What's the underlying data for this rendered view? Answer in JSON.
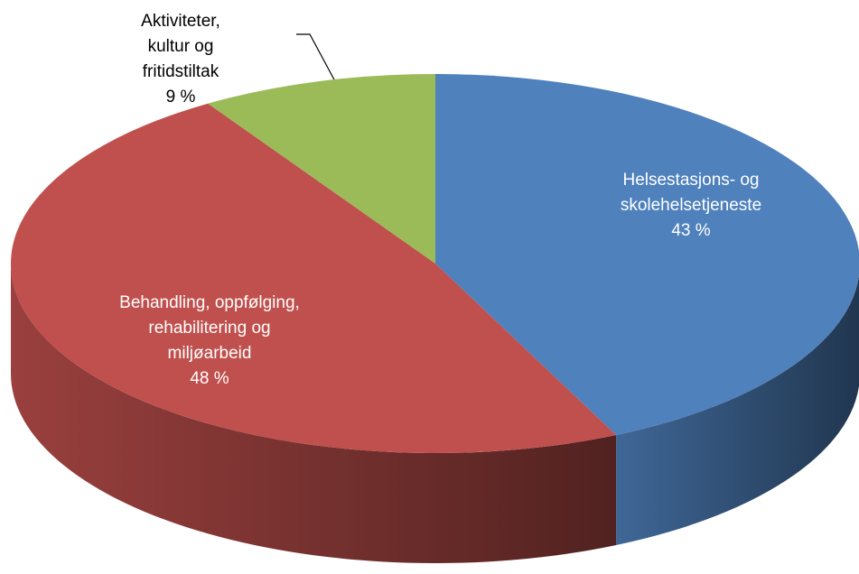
{
  "chart_data": {
    "type": "pie3d",
    "categories": [
      "Helsestasjons- og skolehelsetjeneste",
      "Behandling, oppfølging, rehabilitering og miljøarbeid",
      "Aktiviteter, kultur og fritidstiltak"
    ],
    "values": [
      43,
      48,
      9
    ],
    "value_labels": [
      "43 %",
      "48 %",
      "9 %"
    ],
    "colors": [
      "#4f81bd",
      "#c0504d",
      "#9bbb59"
    ]
  }
}
